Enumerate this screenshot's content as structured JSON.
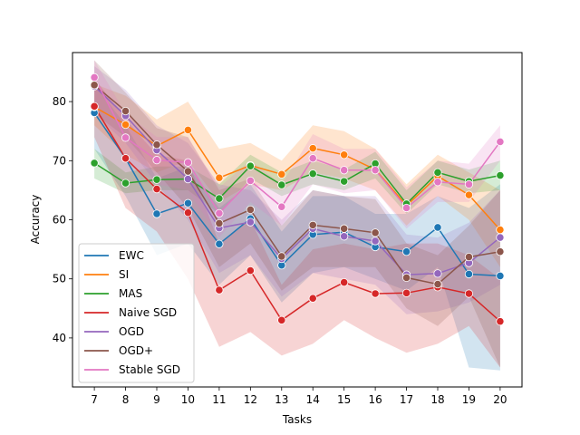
{
  "chart_data": {
    "type": "line",
    "xlabel": "Tasks",
    "ylabel": "Accuracy",
    "x": [
      7,
      8,
      9,
      10,
      11,
      12,
      13,
      14,
      15,
      16,
      17,
      18,
      19,
      20
    ],
    "xlim": [
      6.3,
      20.7
    ],
    "ylim": [
      31.7,
      88.3
    ],
    "yticks": [
      40,
      50,
      60,
      70,
      80
    ],
    "legend_position": "lower-left",
    "series": [
      {
        "name": "EWC",
        "color": "#1f77b4",
        "values": [
          78.1,
          70.4,
          61.0,
          62.8,
          55.9,
          60.2,
          52.3,
          57.5,
          57.9,
          55.4,
          54.6,
          58.7,
          50.8,
          50.5
        ],
        "lower": [
          72.0,
          64.0,
          54.0,
          56.0,
          49.0,
          54.0,
          46.0,
          51.0,
          52.0,
          50.0,
          48.0,
          52.0,
          35.0,
          34.5
        ],
        "upper": [
          83.0,
          76.0,
          67.0,
          69.0,
          62.0,
          66.0,
          58.0,
          64.0,
          64.0,
          61.0,
          61.0,
          64.0,
          62.0,
          66.0
        ]
      },
      {
        "name": "SI",
        "color": "#ff7f0e",
        "values": [
          79.1,
          76.1,
          72.5,
          75.2,
          67.1,
          69.2,
          67.7,
          72.1,
          71.0,
          68.5,
          62.4,
          67.4,
          64.2,
          58.3
        ],
        "lower": [
          76.0,
          71.0,
          68.0,
          70.0,
          63.0,
          66.0,
          65.0,
          68.0,
          67.0,
          65.0,
          59.0,
          64.0,
          60.0,
          52.0
        ],
        "upper": [
          83.0,
          81.0,
          77.0,
          80.0,
          72.0,
          73.0,
          70.0,
          76.0,
          75.0,
          72.0,
          66.0,
          71.0,
          68.0,
          65.0
        ]
      },
      {
        "name": "MAS",
        "color": "#2ca02c",
        "values": [
          69.6,
          66.2,
          66.8,
          66.9,
          63.6,
          69.1,
          65.9,
          67.8,
          66.5,
          69.5,
          62.7,
          68.0,
          66.5,
          67.5
        ],
        "lower": [
          67.0,
          64.5,
          65.0,
          65.0,
          61.0,
          67.0,
          64.0,
          66.0,
          65.0,
          67.0,
          61.0,
          66.0,
          64.5,
          65.0
        ],
        "upper": [
          72.0,
          68.0,
          69.0,
          69.0,
          66.0,
          71.0,
          68.0,
          70.0,
          68.5,
          71.5,
          65.0,
          70.0,
          68.5,
          70.0
        ]
      },
      {
        "name": "Naive SGD",
        "color": "#d62728",
        "values": [
          79.2,
          70.4,
          65.2,
          61.2,
          48.1,
          51.4,
          43.0,
          46.7,
          49.4,
          47.5,
          47.6,
          48.6,
          47.5,
          42.8
        ],
        "lower": [
          74.0,
          62.0,
          58.0,
          50.0,
          38.5,
          41.0,
          37.0,
          39.0,
          43.0,
          40.0,
          37.5,
          39.0,
          42.0,
          35.0
        ],
        "upper": [
          84.0,
          77.0,
          71.0,
          70.0,
          56.0,
          60.0,
          49.0,
          55.0,
          56.0,
          55.0,
          56.0,
          56.0,
          54.0,
          50.0
        ]
      },
      {
        "name": "OGD",
        "color": "#9467bd",
        "values": [
          82.6,
          77.6,
          71.8,
          66.9,
          58.6,
          59.6,
          53.4,
          58.5,
          57.2,
          56.4,
          50.7,
          50.9,
          52.7,
          57.0
        ],
        "lower": [
          78.0,
          73.0,
          66.0,
          60.0,
          51.0,
          54.0,
          47.0,
          51.0,
          50.0,
          49.0,
          44.0,
          44.5,
          46.0,
          49.0
        ],
        "upper": [
          86.0,
          82.0,
          76.0,
          73.0,
          66.0,
          65.0,
          60.0,
          65.0,
          64.0,
          64.0,
          57.5,
          57.0,
          59.5,
          65.0
        ]
      },
      {
        "name": "OGD+",
        "color": "#8c564b",
        "values": [
          82.8,
          78.4,
          72.7,
          68.2,
          59.4,
          61.7,
          53.8,
          59.1,
          58.5,
          57.8,
          50.2,
          49.1,
          53.7,
          54.6
        ],
        "lower": [
          78.0,
          74.0,
          68.0,
          62.0,
          52.0,
          56.0,
          48.0,
          52.0,
          52.0,
          52.0,
          45.0,
          42.0,
          47.0,
          35.0
        ],
        "upper": [
          87.0,
          81.5,
          75.5,
          74.0,
          65.0,
          67.0,
          59.0,
          65.0,
          64.0,
          63.5,
          56.0,
          54.0,
          59.0,
          65.0
        ]
      },
      {
        "name": "Stable SGD",
        "color": "#e377c2",
        "values": [
          84.1,
          73.9,
          70.1,
          69.7,
          61.1,
          66.6,
          62.2,
          70.4,
          68.4,
          68.4,
          62.0,
          66.4,
          66.0,
          73.2
        ],
        "lower": [
          80.0,
          70.0,
          66.0,
          65.0,
          57.0,
          63.0,
          59.0,
          66.0,
          64.5,
          65.0,
          58.5,
          63.0,
          63.0,
          70.0
        ],
        "upper": [
          87.0,
          78.0,
          74.0,
          74.0,
          65.5,
          70.0,
          66.0,
          74.5,
          72.0,
          72.0,
          65.5,
          70.0,
          69.5,
          76.0
        ]
      }
    ]
  }
}
